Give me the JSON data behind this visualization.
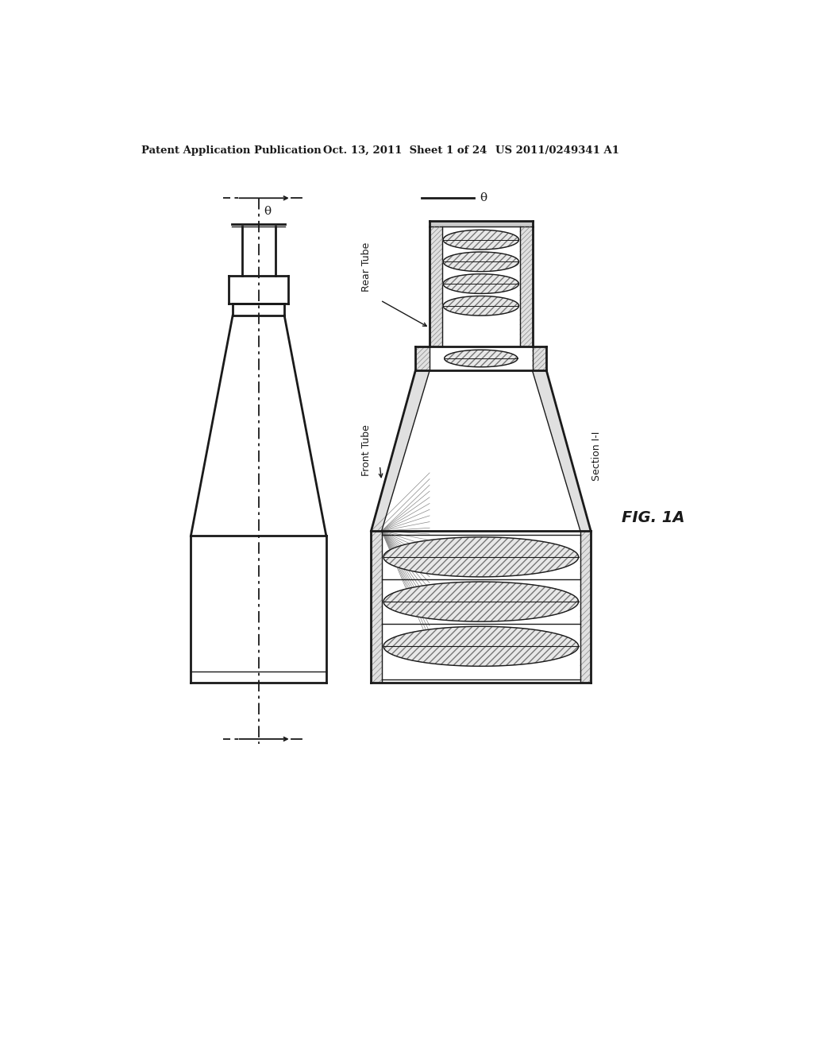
{
  "bg_color": "#ffffff",
  "header_text": "Patent Application Publication",
  "header_date": "Oct. 13, 2011  Sheet 1 of 24",
  "header_patent": "US 2011/0249341 A1",
  "fig_label": "FIG. 1A",
  "section_label": "Section I-I",
  "rear_tube_label": "Rear Tube",
  "front_tube_label": "Front Tube",
  "theta_symbol": "θ",
  "line_color": "#1a1a1a",
  "hatch_color": "#666666"
}
